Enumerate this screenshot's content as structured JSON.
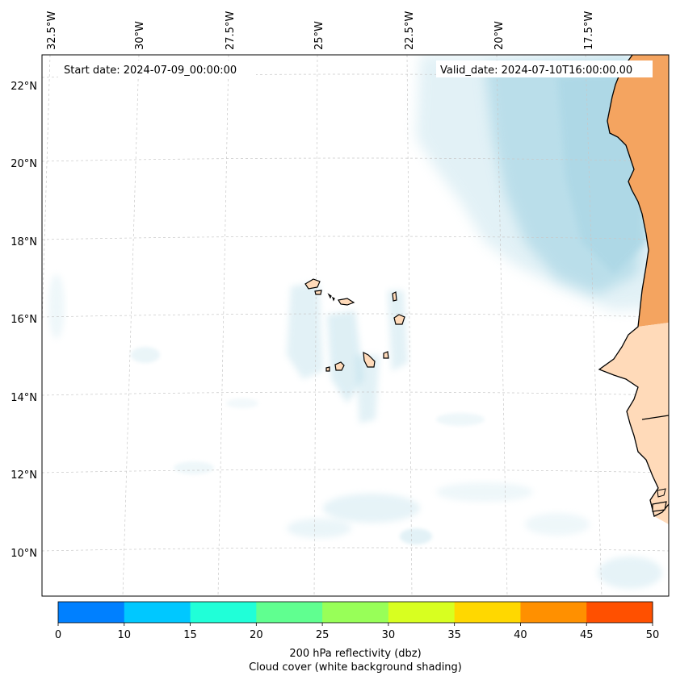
{
  "header": {
    "start_date": "Start date: 2024-07-09_00:00:00",
    "valid_date": "Valid_date: 2024-07-10T16:00:00.00"
  },
  "map": {
    "lon_labels": [
      "32.5°W",
      "30°W",
      "27.5°W",
      "25°W",
      "22.5°W",
      "20°W",
      "17.5°W"
    ],
    "lat_labels": [
      "22°N",
      "20°N",
      "18°N",
      "16°N",
      "14°N",
      "12°N",
      "10°N"
    ],
    "colors": {
      "cloud": "#add8e6",
      "land_africa": "#f4a460",
      "land_islands": "#ffdab9",
      "grid": "#cccccc",
      "coast": "#000000"
    }
  },
  "colorbar": {
    "ticks": [
      "0",
      "10",
      "15",
      "20",
      "25",
      "30",
      "35",
      "40",
      "45",
      "50"
    ],
    "colors": [
      "#0080ff",
      "#00c8ff",
      "#20ffd8",
      "#60ff90",
      "#98ff58",
      "#d8ff20",
      "#ffd800",
      "#ff9000",
      "#ff5000"
    ],
    "label_line1": "200 hPa reflectivity (dbz)",
    "label_line2": "Cloud cover (white background shading)"
  }
}
